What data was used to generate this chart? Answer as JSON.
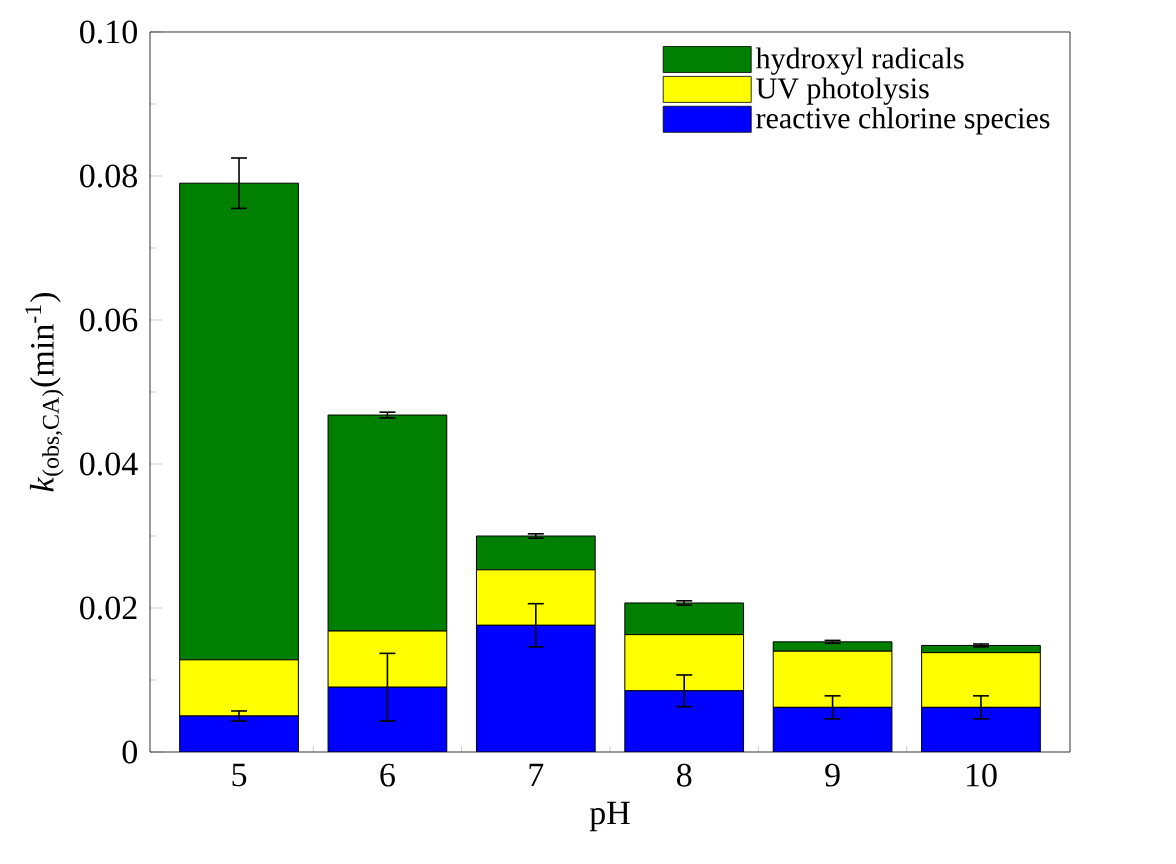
{
  "chart_data": {
    "type": "bar",
    "stacked": true,
    "xlabel": "pH",
    "ylabel": "*k*$_{(obs,CA)}$(min$^{-1}$)",
    "categories": [
      "5",
      "6",
      "7",
      "8",
      "9",
      "10"
    ],
    "series": [
      {
        "name": "reactive chlorine species",
        "color": "#0000ff",
        "values": [
          0.005,
          0.009,
          0.0176,
          0.0085,
          0.0062,
          0.0062
        ],
        "errors": [
          0.0007,
          0.0047,
          0.003,
          0.0022,
          0.0016,
          0.0016
        ]
      },
      {
        "name": "UV photolysis",
        "color": "#ffff00",
        "values": [
          0.0078,
          0.0078,
          0.0077,
          0.0078,
          0.0078,
          0.0076
        ]
      },
      {
        "name": "hydroxyl radicals",
        "color": "#007f00",
        "values": [
          0.0662,
          0.03,
          0.0047,
          0.0044,
          0.0013,
          0.001
        ],
        "errors": [
          0.0035,
          0.0004,
          0.0003,
          0.0003,
          0.0002,
          0.0002
        ]
      }
    ],
    "ylim": [
      0,
      0.1
    ],
    "yticks": [
      {
        "value": 0,
        "label": "0"
      },
      {
        "value": 0.02,
        "label": "0.02"
      },
      {
        "value": 0.04,
        "label": "0.04"
      },
      {
        "value": 0.06,
        "label": "0.06"
      },
      {
        "value": 0.08,
        "label": "0.08"
      },
      {
        "value": 0.1,
        "label": "0.10"
      }
    ],
    "legend": "top right",
    "grid": false
  }
}
